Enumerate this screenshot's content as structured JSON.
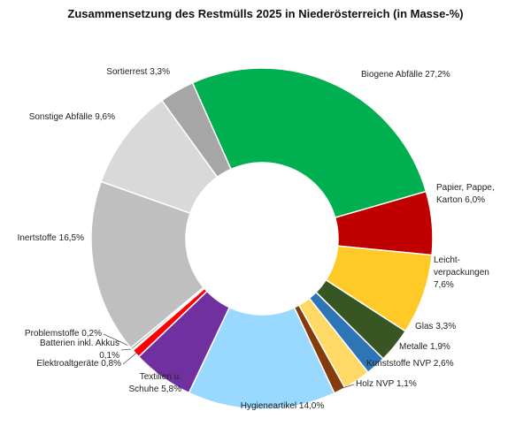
{
  "chart_data": {
    "type": "donut",
    "title": "Zusammensetzung des Restmülls 2025 in Niederösterreich (in Masse-%)",
    "categories": [
      "Biogene Abfälle",
      "Papier, Pappe, Karton",
      "Leicht-verpackungen",
      "Glas",
      "Metalle",
      "Kunststoffe NVP",
      "Holz NVP",
      "Hygieneartikel",
      "Textilien u. Schuhe",
      "Elektroaltgeräte",
      "Batterien inkl. Akkus",
      "Problemstoffe",
      "Inertstoffe",
      "Sonstige Abfälle",
      "Sortierrest"
    ],
    "values": [
      27.2,
      6.0,
      7.6,
      3.3,
      1.9,
      2.6,
      1.1,
      14.0,
      5.8,
      0.8,
      0.1,
      0.2,
      16.5,
      9.6,
      3.3
    ],
    "value_labels": [
      "27,2%",
      "6,0%",
      "7,6%",
      "3,3%",
      "1,9%",
      "2,6%",
      "1,1%",
      "14,0%",
      "5,8%",
      "0,8%",
      "0,1%",
      "0,2%",
      "16,5%",
      "9,6%",
      "3,3%"
    ],
    "colors": [
      "#00b050",
      "#c00000",
      "#ffca28",
      "#375623",
      "#2e75b6",
      "#ffd966",
      "#843c0c",
      "#99d9ff",
      "#7030a0",
      "#ff0000",
      "#c00000",
      "#7f7f7f",
      "#bfbfbf",
      "#d9d9d9",
      "#a6a6a6"
    ]
  }
}
